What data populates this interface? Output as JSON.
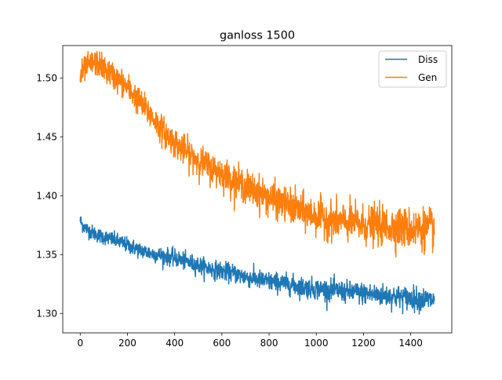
{
  "chart_data": {
    "type": "line",
    "title": "ganloss 1500",
    "xlabel": "",
    "ylabel": "",
    "xlim": [
      -74,
      1574
    ],
    "ylim": [
      1.2835,
      1.5275
    ],
    "xticks": [
      0,
      200,
      400,
      600,
      800,
      1000,
      1200,
      1400
    ],
    "xtick_labels": [
      "0",
      "200",
      "400",
      "600",
      "800",
      "1000",
      "1200",
      "1400"
    ],
    "yticks": [
      1.3,
      1.35,
      1.4,
      1.45,
      1.5
    ],
    "ytick_labels": [
      "1.30",
      "1.35",
      "1.40",
      "1.45",
      "1.50"
    ],
    "grid": false,
    "legend": {
      "position": "top-right",
      "entries": [
        "Diss",
        "Gen"
      ]
    },
    "x": [
      0,
      10,
      20,
      40,
      60,
      80,
      100,
      150,
      200,
      250,
      300,
      350,
      400,
      450,
      500,
      550,
      600,
      650,
      700,
      750,
      800,
      850,
      900,
      950,
      1000,
      1050,
      1100,
      1150,
      1200,
      1250,
      1300,
      1350,
      1400,
      1450,
      1500
    ],
    "series": [
      {
        "name": "Diss",
        "color": "#1f77b4",
        "values": [
          1.379,
          1.375,
          1.373,
          1.37,
          1.368,
          1.366,
          1.365,
          1.362,
          1.358,
          1.354,
          1.351,
          1.349,
          1.347,
          1.344,
          1.341,
          1.338,
          1.336,
          1.334,
          1.331,
          1.329,
          1.327,
          1.326,
          1.324,
          1.322,
          1.321,
          1.32,
          1.319,
          1.318,
          1.317,
          1.316,
          1.315,
          1.314,
          1.313,
          1.312,
          1.311
        ],
        "noise": 0.004
      },
      {
        "name": "Gen",
        "color": "#ff7f0e",
        "values": [
          1.5,
          1.505,
          1.508,
          1.511,
          1.513,
          1.512,
          1.508,
          1.5,
          1.492,
          1.48,
          1.468,
          1.455,
          1.445,
          1.437,
          1.43,
          1.424,
          1.419,
          1.413,
          1.408,
          1.403,
          1.398,
          1.394,
          1.39,
          1.386,
          1.383,
          1.38,
          1.378,
          1.377,
          1.375,
          1.375,
          1.374,
          1.373,
          1.372,
          1.372,
          1.372
        ],
        "noise": 0.007
      }
    ]
  }
}
